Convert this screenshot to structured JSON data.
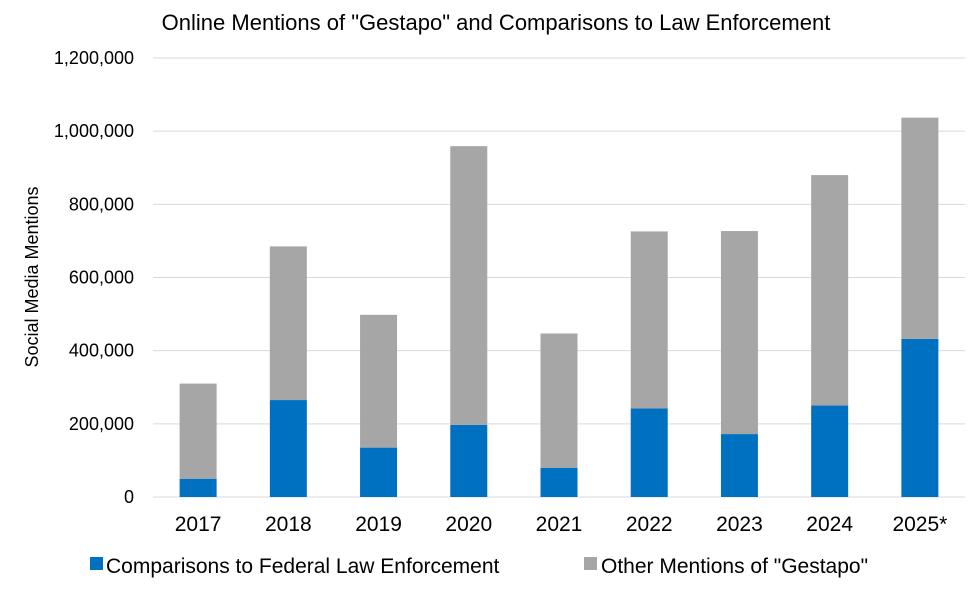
{
  "chart_data": {
    "type": "bar",
    "stacked": true,
    "title": "Online Mentions of \"Gestapo\" and Comparisons to Law Enforcement",
    "xlabel": "",
    "ylabel": "Social Media Mentions",
    "ylim": [
      0,
      1200000
    ],
    "yticks": [
      0,
      200000,
      400000,
      600000,
      800000,
      1000000,
      1200000
    ],
    "ytick_labels": [
      "0",
      "200,000",
      "400,000",
      "600,000",
      "800,000",
      "1,000,000",
      "1,200,000"
    ],
    "grid": true,
    "legend_position": "bottom",
    "categories": [
      "2017",
      "2018",
      "2019",
      "2020",
      "2021",
      "2022",
      "2023",
      "2024",
      "2025*"
    ],
    "series": [
      {
        "name": "Comparisons to Federal Law Enforcement",
        "color": "#0070c0",
        "values": [
          50000,
          265000,
          135000,
          197000,
          80000,
          242000,
          172000,
          250000,
          432000
        ]
      },
      {
        "name": "Other Mentions of \"Gestapo\"",
        "color": "#a6a6a6",
        "values": [
          260000,
          420000,
          363000,
          762000,
          367000,
          484000,
          555000,
          630000,
          605000
        ]
      }
    ]
  }
}
